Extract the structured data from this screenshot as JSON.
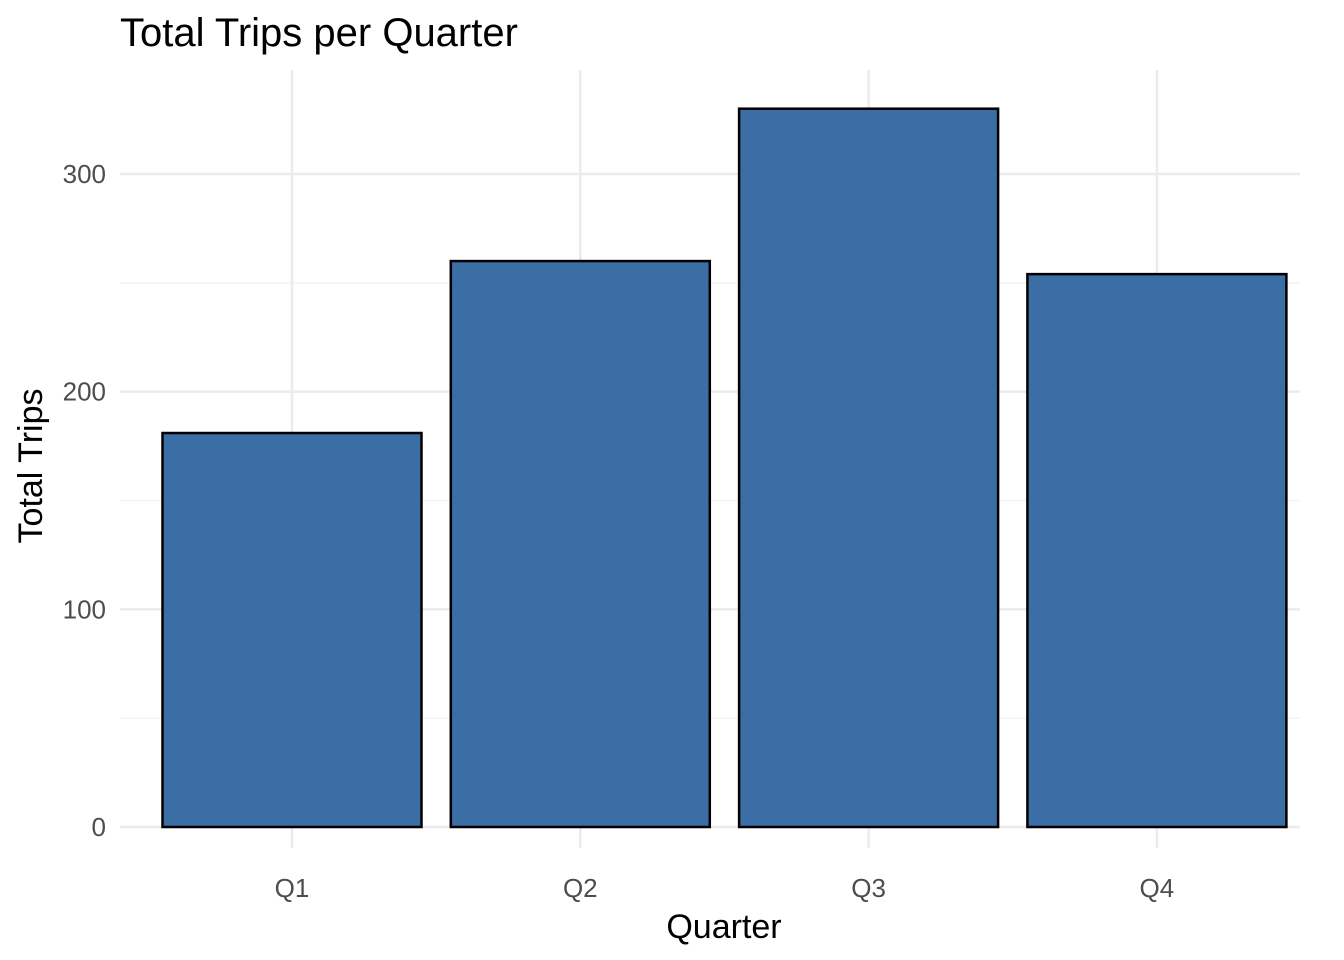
{
  "chart_data": {
    "type": "bar",
    "title": "Total Trips per Quarter",
    "xlabel": "Quarter",
    "ylabel": "Total Trips",
    "categories": [
      "Q1",
      "Q2",
      "Q3",
      "Q4"
    ],
    "values": [
      181,
      260,
      330,
      254
    ],
    "ylim": [
      0,
      345
    ],
    "y_ticks": [
      0,
      100,
      200,
      300
    ],
    "y_tick_labels": [
      "0",
      "100",
      "200",
      "300"
    ],
    "grid": true,
    "legend": "none",
    "colors": {
      "bar_fill": "#3a6ea5",
      "bar_stroke": "#000000",
      "grid_major": "#ebebeb",
      "grid_minor": "#f3f3f3",
      "background": "#ffffff"
    }
  }
}
